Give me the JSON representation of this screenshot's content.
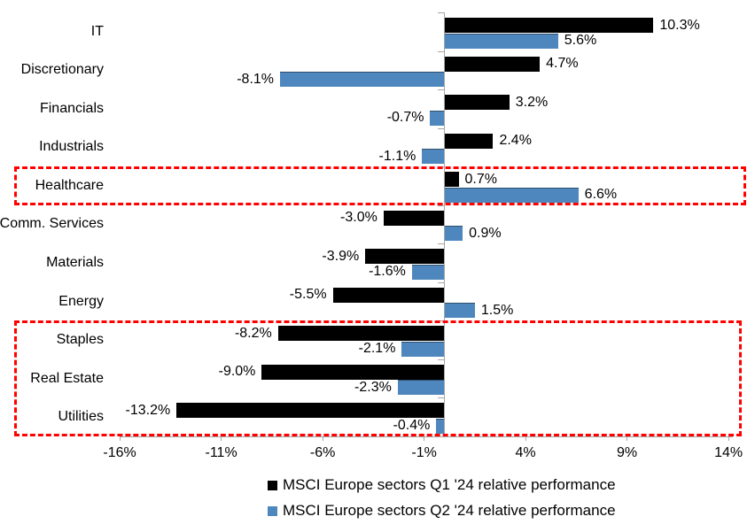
{
  "chart_data": {
    "type": "bar",
    "orientation": "horizontal",
    "title": "",
    "categories": [
      "IT",
      "Discretionary",
      "Financials",
      "Industrials",
      "Healthcare",
      "Comm. Services",
      "Materials",
      "Energy",
      "Staples",
      "Real Estate",
      "Utilities"
    ],
    "series": [
      {
        "name": "MSCI Europe sectors Q1 '24 relative performance",
        "color": "#000000",
        "values": [
          10.3,
          4.7,
          3.2,
          2.4,
          0.7,
          -3.0,
          -3.9,
          -5.5,
          -8.2,
          -9.0,
          -13.2
        ],
        "labels": [
          "10.3%",
          "4.7%",
          "3.2%",
          "2.4%",
          "0.7%",
          "-3.0%",
          "-3.9%",
          "-5.5%",
          "-8.2%",
          "-9.0%",
          "-13.2%"
        ]
      },
      {
        "name": "MSCI Europe sectors Q2 '24 relative performance",
        "color": "#4E87BE",
        "values": [
          5.6,
          -8.1,
          -0.7,
          -1.1,
          6.6,
          0.9,
          -1.6,
          1.5,
          -2.1,
          -2.3,
          -0.4
        ],
        "labels": [
          "5.6%",
          "-8.1%",
          "-0.7%",
          "-1.1%",
          "6.6%",
          "0.9%",
          "-1.6%",
          "1.5%",
          "-2.1%",
          "-2.3%",
          "-0.4%"
        ]
      }
    ],
    "x_axis": {
      "min": -16,
      "max": 14,
      "tick_step": 5,
      "tick_values": [
        -16,
        -11,
        -6,
        -1,
        4,
        9,
        14
      ],
      "tick_labels": [
        "-16%",
        "-11%",
        "-6%",
        "-1%",
        "4%",
        "9%",
        "14%"
      ]
    },
    "y_axis": {
      "zero_line": true
    },
    "gridlines": false,
    "legend_position": "bottom",
    "data_labels": "outside-end",
    "axis_color": "#A6A6A6",
    "annotations": {
      "highlight_boxes": [
        {
          "categories": [
            "Healthcare"
          ],
          "color": "#FF0000",
          "style": "dashed"
        },
        {
          "categories": [
            "Staples",
            "Real Estate",
            "Utilities"
          ],
          "color": "#FF0000",
          "style": "dashed"
        }
      ]
    }
  }
}
